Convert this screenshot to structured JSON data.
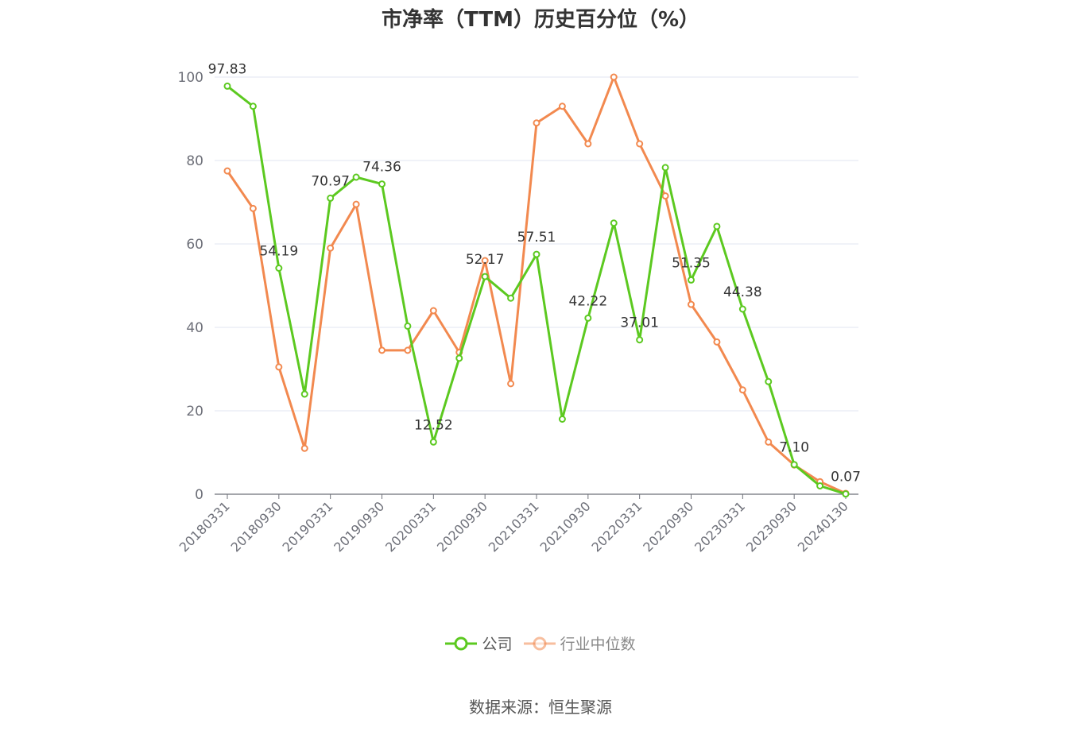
{
  "chart_data": {
    "type": "line",
    "title": "市净率（TTM）历史百分位（%）",
    "xlabel": "",
    "ylabel": "",
    "ylim": [
      0,
      100
    ],
    "yticks": [
      0,
      20,
      40,
      60,
      80,
      100
    ],
    "grid": true,
    "legend_position": "bottom",
    "x": [
      "20180331",
      "20180630",
      "20180930",
      "20181231",
      "20190331",
      "20190630",
      "20190930",
      "20191231",
      "20200331",
      "20200630",
      "20200930",
      "20201231",
      "20210331",
      "20210630",
      "20210930",
      "20211231",
      "20220331",
      "20220630",
      "20220930",
      "20221231",
      "20230331",
      "20230630",
      "20230930",
      "20231231",
      "20240130"
    ],
    "xtick_labels": [
      "20180331",
      "20180930",
      "20190331",
      "20190930",
      "20200331",
      "20200930",
      "20210331",
      "20210930",
      "20220331",
      "20220930",
      "20230331",
      "20230930",
      "20240130"
    ],
    "series": [
      {
        "name": "公司",
        "color": "#5cc920",
        "values": [
          97.83,
          93.0,
          54.19,
          24.0,
          70.97,
          76.0,
          74.36,
          40.3,
          12.52,
          32.6,
          52.17,
          47.0,
          57.51,
          18.0,
          42.22,
          65.0,
          37.01,
          78.3,
          51.35,
          64.2,
          44.38,
          27.0,
          7.1,
          2.0,
          0.07
        ],
        "labels": {
          "0": "97.83",
          "2": "54.19",
          "4": "70.97",
          "6": "74.36",
          "8": "12.52",
          "10": "52.17",
          "12": "57.51",
          "14": "42.22",
          "16": "37.01",
          "18": "51.35",
          "20": "44.38",
          "22": "7.10",
          "24": "0.07"
        }
      },
      {
        "name": "行业中位数",
        "color": "#f2894f",
        "values": [
          77.5,
          68.5,
          30.5,
          11.0,
          59.0,
          69.5,
          34.5,
          34.5,
          44.0,
          34.0,
          56.0,
          26.5,
          89.0,
          93.0,
          84.0,
          100.0,
          84.0,
          71.5,
          45.5,
          36.5,
          25.0,
          12.5,
          7.0,
          3.0,
          0.2
        ]
      }
    ]
  },
  "source_note": "数据来源：恒生聚源"
}
